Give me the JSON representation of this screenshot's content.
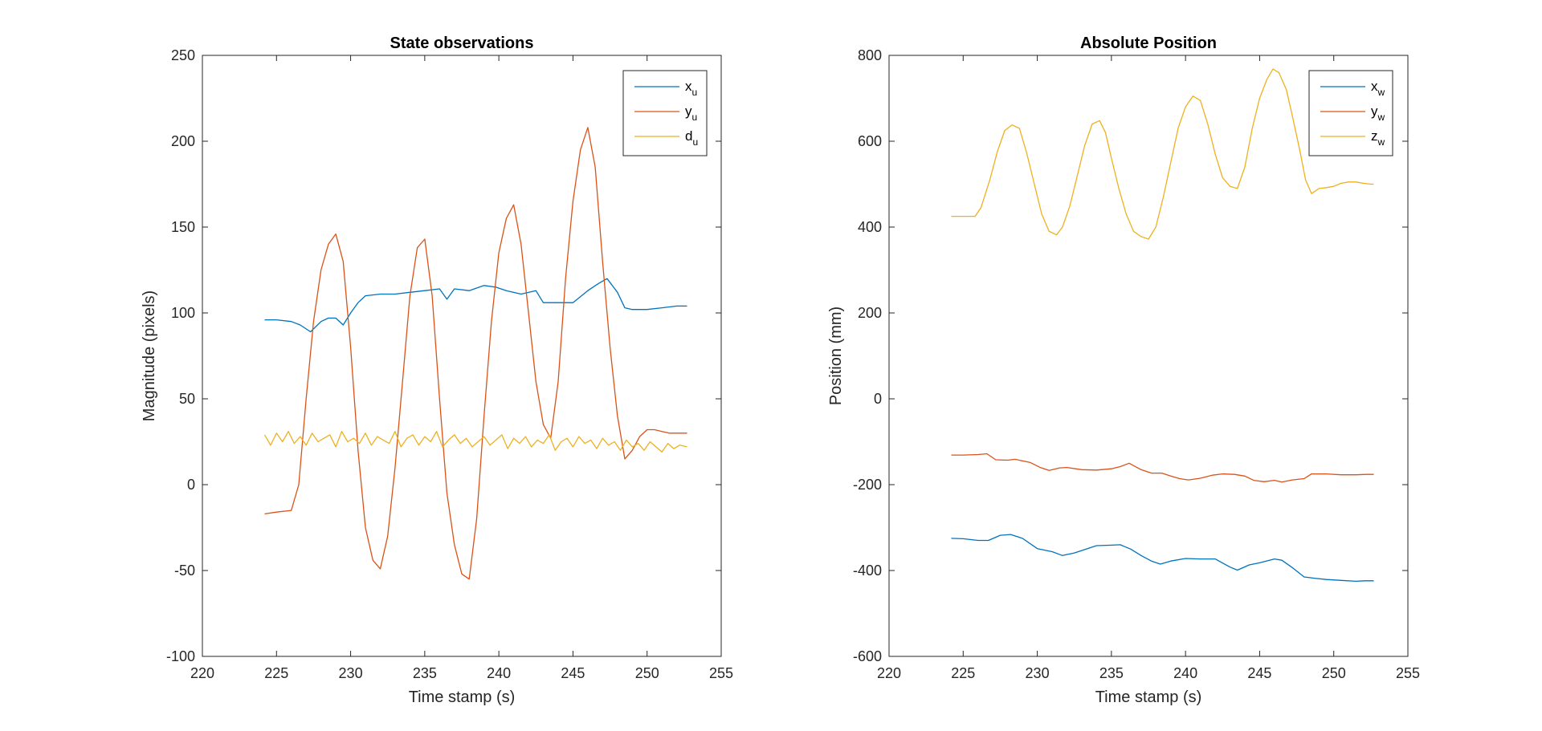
{
  "chart_data": [
    {
      "type": "line",
      "title": "State observations",
      "xlabel": "Time stamp (s)",
      "ylabel": "Magnitude (pixels)",
      "xlim": [
        220,
        255
      ],
      "ylim": [
        -100,
        250
      ],
      "xticks": [
        220,
        225,
        230,
        235,
        240,
        245,
        250,
        255
      ],
      "yticks": [
        -100,
        -50,
        0,
        50,
        100,
        150,
        200,
        250
      ],
      "legend_position": "top-right",
      "colors": {
        "blue": "#0072BD",
        "red": "#D95319",
        "yellow": "#EDB120"
      },
      "series": [
        {
          "name": "x",
          "subscript": "u",
          "color": "#0072BD",
          "x": [
            224.2,
            225.0,
            226.0,
            226.6,
            227.3,
            228.0,
            228.5,
            229.0,
            229.5,
            230.0,
            230.5,
            231.0,
            232.0,
            233.0,
            234.0,
            235.0,
            236.0,
            236.5,
            237.0,
            238.0,
            239.0,
            239.8,
            240.5,
            241.5,
            242.5,
            243.0,
            244.0,
            245.0,
            246.0,
            246.7,
            247.3,
            248.0,
            248.5,
            249.0,
            250.0,
            251.0,
            252.0,
            252.7
          ],
          "y": [
            96,
            96,
            95,
            93,
            89,
            95,
            97,
            97,
            93,
            100,
            106,
            110,
            111,
            111,
            112,
            113,
            114,
            108,
            114,
            113,
            116,
            115,
            113,
            111,
            113,
            106,
            106,
            106,
            113,
            117,
            120,
            112,
            103,
            102,
            102,
            103,
            104,
            104
          ]
        },
        {
          "name": "y",
          "subscript": "u",
          "color": "#D95319",
          "x": [
            224.2,
            225.0,
            226.0,
            226.5,
            227.0,
            227.5,
            228.0,
            228.5,
            229.0,
            229.5,
            230.0,
            230.5,
            231.0,
            231.5,
            232.0,
            232.5,
            233.0,
            233.5,
            234.0,
            234.5,
            235.0,
            235.5,
            236.0,
            236.5,
            237.0,
            237.5,
            238.0,
            238.5,
            239.0,
            239.5,
            240.0,
            240.5,
            241.0,
            241.5,
            242.0,
            242.5,
            243.0,
            243.5,
            244.0,
            244.5,
            245.0,
            245.5,
            246.0,
            246.5,
            247.0,
            247.5,
            248.0,
            248.5,
            249.0,
            249.5,
            250.0,
            250.5,
            251.0,
            251.5,
            252.0,
            252.7
          ],
          "y": [
            -17,
            -16,
            -15,
            0,
            50,
            95,
            125,
            140,
            146,
            130,
            80,
            20,
            -25,
            -44,
            -49,
            -30,
            10,
            60,
            110,
            138,
            143,
            110,
            50,
            -5,
            -35,
            -52,
            -55,
            -20,
            40,
            95,
            135,
            155,
            163,
            140,
            100,
            60,
            35,
            27,
            60,
            120,
            165,
            195,
            208,
            185,
            130,
            80,
            40,
            15,
            20,
            28,
            32,
            32,
            31,
            30,
            30,
            30
          ]
        },
        {
          "name": "d",
          "subscript": "u",
          "color": "#EDB120",
          "x": [
            224.2,
            224.6,
            225.0,
            225.4,
            225.8,
            226.2,
            226.6,
            227.0,
            227.4,
            227.8,
            228.2,
            228.6,
            229.0,
            229.4,
            229.8,
            230.2,
            230.6,
            231.0,
            231.4,
            231.8,
            232.2,
            232.6,
            233.0,
            233.4,
            233.8,
            234.2,
            234.6,
            235.0,
            235.4,
            235.8,
            236.2,
            236.6,
            237.0,
            237.4,
            237.8,
            238.2,
            238.6,
            239.0,
            239.4,
            239.8,
            240.2,
            240.6,
            241.0,
            241.4,
            241.8,
            242.2,
            242.6,
            243.0,
            243.4,
            243.8,
            244.2,
            244.6,
            245.0,
            245.4,
            245.8,
            246.2,
            246.6,
            247.0,
            247.4,
            247.8,
            248.2,
            248.6,
            249.0,
            249.4,
            249.8,
            250.2,
            250.6,
            251.0,
            251.4,
            251.8,
            252.2,
            252.7
          ],
          "y": [
            29,
            23,
            30,
            25,
            31,
            24,
            28,
            23,
            30,
            25,
            27,
            29,
            22,
            31,
            25,
            27,
            24,
            30,
            23,
            28,
            26,
            24,
            31,
            22,
            27,
            29,
            23,
            28,
            25,
            31,
            22,
            26,
            29,
            24,
            27,
            22,
            25,
            28,
            23,
            26,
            29,
            21,
            27,
            24,
            28,
            22,
            26,
            24,
            29,
            20,
            25,
            27,
            22,
            28,
            24,
            26,
            21,
            27,
            23,
            25,
            20,
            26,
            22,
            24,
            20,
            25,
            22,
            19,
            24,
            21,
            23,
            22
          ]
        }
      ]
    },
    {
      "type": "line",
      "title": "Absolute Position",
      "xlabel": "Time stamp (s)",
      "ylabel": "Position (mm)",
      "xlim": [
        220,
        255
      ],
      "ylim": [
        -600,
        800
      ],
      "xticks": [
        220,
        225,
        230,
        235,
        240,
        245,
        250,
        255
      ],
      "yticks": [
        -600,
        -400,
        -200,
        0,
        200,
        400,
        600,
        800
      ],
      "legend_position": "top-right",
      "colors": {
        "blue": "#0072BD",
        "red": "#D95319",
        "yellow": "#EDB120"
      },
      "series": [
        {
          "name": "x",
          "subscript": "w",
          "color": "#0072BD",
          "x": [
            224.2,
            225.0,
            226.0,
            226.7,
            227.5,
            228.2,
            229.0,
            230.0,
            231.0,
            231.7,
            232.5,
            233.3,
            234.0,
            235.0,
            235.6,
            236.3,
            237.0,
            237.7,
            238.3,
            239.0,
            240.0,
            241.0,
            242.0,
            243.0,
            243.5,
            244.3,
            245.0,
            246.0,
            246.5,
            247.2,
            248.0,
            248.7,
            249.5,
            250.5,
            251.5,
            252.1,
            252.7
          ],
          "y": [
            -325,
            -326,
            -330,
            -330,
            -318,
            -316,
            -325,
            -349,
            -356,
            -365,
            -359,
            -350,
            -342,
            -341,
            -340,
            -350,
            -365,
            -378,
            -385,
            -378,
            -372,
            -373,
            -373,
            -392,
            -399,
            -387,
            -382,
            -373,
            -376,
            -393,
            -415,
            -418,
            -421,
            -423,
            -425,
            -424,
            -424
          ]
        },
        {
          "name": "y",
          "subscript": "w",
          "color": "#D95319",
          "x": [
            224.2,
            225.0,
            226.0,
            226.6,
            227.2,
            228.0,
            228.5,
            229.5,
            230.2,
            230.8,
            231.5,
            232.0,
            233.0,
            234.0,
            235.0,
            235.6,
            236.2,
            237.0,
            237.7,
            238.4,
            239.0,
            239.6,
            240.2,
            241.0,
            241.8,
            242.5,
            243.3,
            244.0,
            244.6,
            245.3,
            246.0,
            246.5,
            247.2,
            248.0,
            248.5,
            249.5,
            250.5,
            251.5,
            252.2,
            252.7
          ],
          "y": [
            -131,
            -131,
            -130,
            -128,
            -142,
            -143,
            -141,
            -148,
            -160,
            -167,
            -161,
            -160,
            -165,
            -166,
            -163,
            -158,
            -150,
            -165,
            -173,
            -173,
            -180,
            -186,
            -189,
            -185,
            -178,
            -175,
            -176,
            -180,
            -190,
            -193,
            -190,
            -194,
            -189,
            -186,
            -175,
            -175,
            -177,
            -177,
            -176,
            -176
          ]
        },
        {
          "name": "z",
          "subscript": "w",
          "color": "#EDB120",
          "x": [
            224.2,
            225.0,
            225.8,
            226.2,
            226.8,
            227.3,
            227.8,
            228.3,
            228.8,
            229.3,
            229.8,
            230.3,
            230.8,
            231.3,
            231.7,
            232.2,
            232.7,
            233.2,
            233.7,
            234.2,
            234.6,
            235.0,
            235.5,
            236.0,
            236.5,
            237.0,
            237.5,
            238.0,
            238.5,
            239.0,
            239.5,
            240.0,
            240.5,
            241.0,
            241.5,
            242.0,
            242.5,
            243.0,
            243.5,
            244.0,
            244.5,
            245.0,
            245.5,
            245.9,
            246.3,
            246.8,
            247.2,
            247.7,
            248.1,
            248.5,
            249.0,
            249.5,
            250.0,
            250.5,
            251.0,
            251.5,
            252.0,
            252.5,
            252.7
          ],
          "y": [
            425,
            425,
            425,
            445,
            510,
            575,
            625,
            638,
            630,
            570,
            500,
            430,
            390,
            382,
            400,
            450,
            520,
            590,
            640,
            648,
            620,
            560,
            490,
            430,
            390,
            378,
            372,
            400,
            470,
            550,
            630,
            680,
            705,
            695,
            640,
            570,
            515,
            495,
            490,
            540,
            630,
            700,
            745,
            768,
            760,
            720,
            660,
            580,
            510,
            478,
            490,
            492,
            495,
            502,
            505,
            505,
            502,
            500,
            500
          ]
        }
      ]
    }
  ]
}
